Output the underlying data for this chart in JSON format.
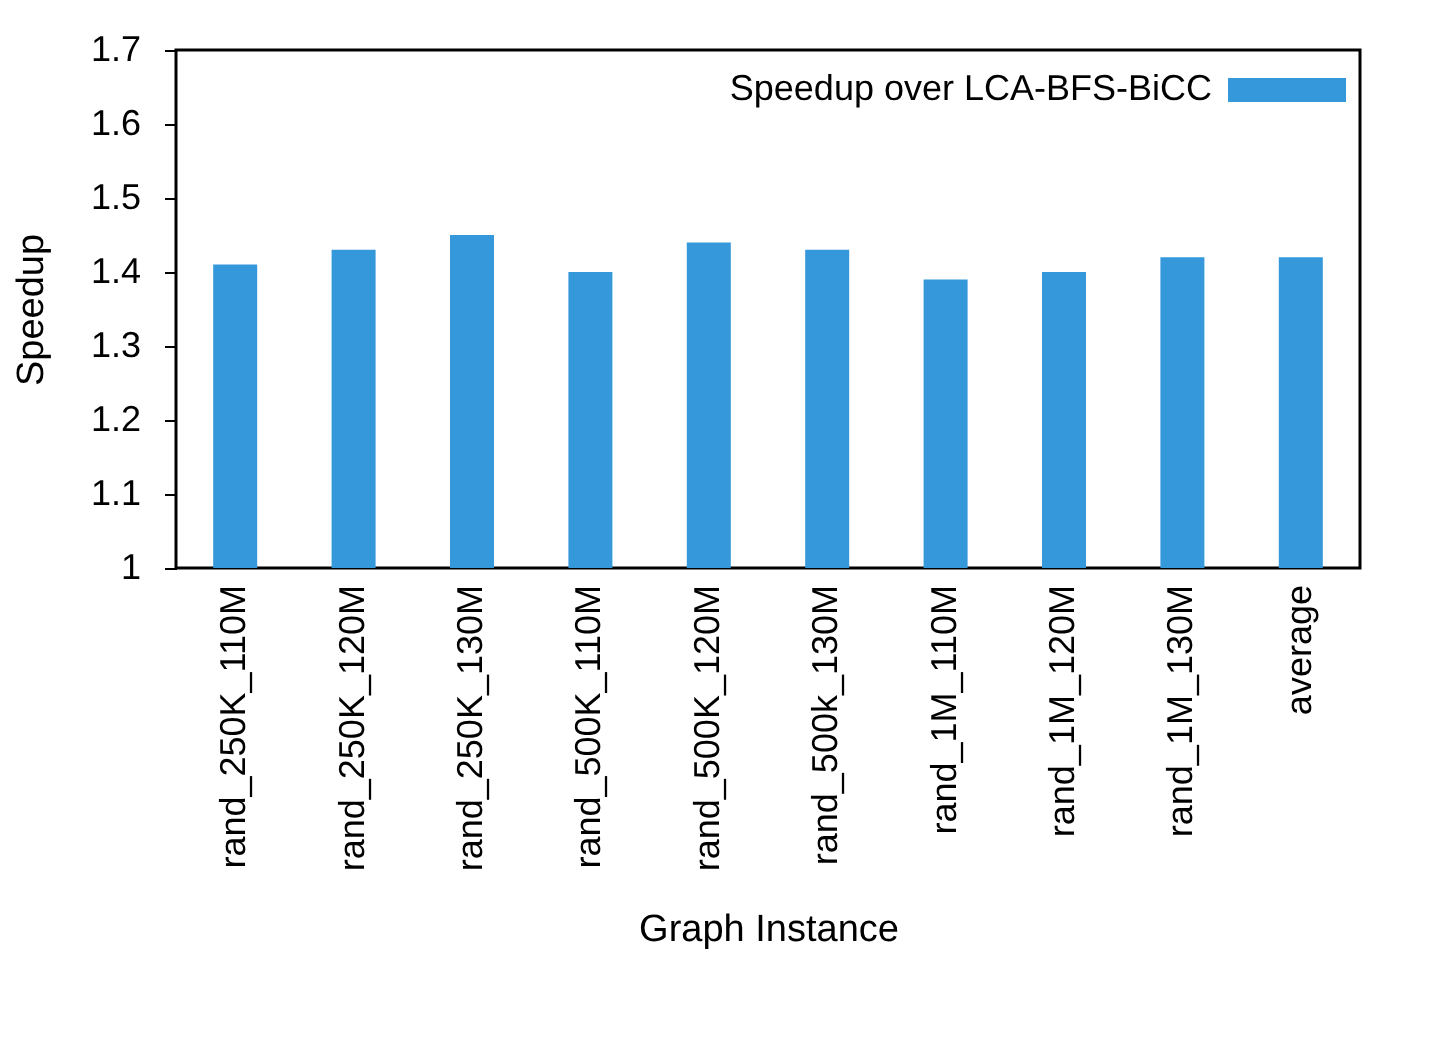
{
  "chart_data": {
    "type": "bar",
    "xlabel": "Graph Instance",
    "ylabel": "Speedup",
    "categories": [
      "rand_250K_110M",
      "rand_250K_120M",
      "rand_250K_130M",
      "rand_500K_110M",
      "rand_500K_120M",
      "rand_500k_130M",
      "rand_1M_110M",
      "rand_1M_120M",
      "rand_1M_130M",
      "average"
    ],
    "series": [
      {
        "name": "Speedup over LCA-BFS-BiCC",
        "color": "#3498db",
        "values": [
          1.41,
          1.43,
          1.45,
          1.4,
          1.44,
          1.43,
          1.39,
          1.4,
          1.42,
          1.42
        ]
      }
    ],
    "ylim": [
      1,
      1.7
    ],
    "yticks": [
      {
        "value": 1,
        "label": "1"
      },
      1.1,
      1.2,
      1.3,
      1.4,
      1.5,
      1.6,
      1.7
    ],
    "grid": false,
    "legend": "top right"
  }
}
